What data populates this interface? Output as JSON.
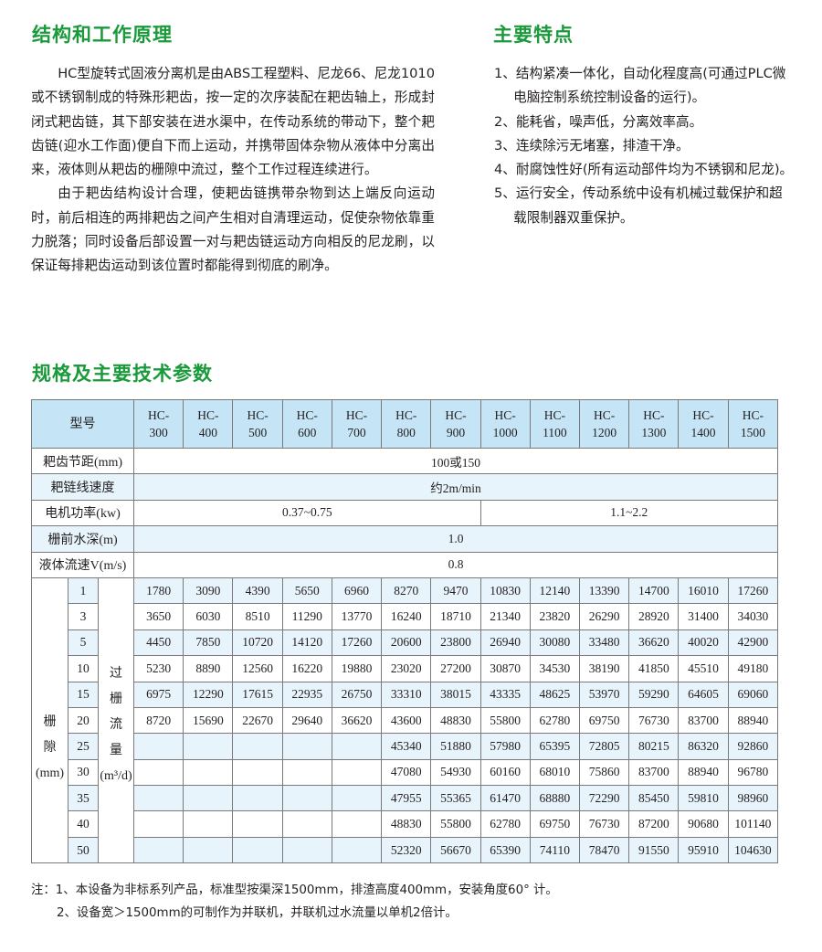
{
  "principle": {
    "title": "结构和工作原理",
    "paragraphs": [
      "HC型旋转式固液分离机是由ABS工程塑料、尼龙66、尼龙1010或不锈钢制成的特殊形耙齿，按一定的次序装配在耙齿轴上，形成封闭式耙齿链，其下部安装在进水渠中，在传动系统的带动下，整个耙齿链(迎水工作面)便自下而上运动，并携带固体杂物从液体中分离出来，液体则从耙齿的栅隙中流过，整个工作过程连续进行。",
      "由于耙齿结构设计合理，使耙齿链携带杂物到达上端反向运动时，前后相连的两排耙齿之间产生相对自清理运动，促使杂物依靠重力脱落；同时设备后部设置一对与耙齿链运动方向相反的尼龙刷，以保证每排耙齿运动到该位置时都能得到彻底的刷净。"
    ]
  },
  "features": {
    "title": "主要特点",
    "items": [
      "1、结构紧凑一体化，自动化程度高(可通过PLC微电脑控制系统控制设备的运行)。",
      "2、能耗省，噪声低，分离效率高。",
      "3、连续除污无堵塞，排渣干净。",
      "4、耐腐蚀性好(所有运动部件均为不锈钢和尼龙)。",
      "5、运行安全，传动系统中设有机械过载保护和超载限制器双重保护。"
    ]
  },
  "specs": {
    "title": "规格及主要技术参数",
    "model_label": "型号",
    "models": [
      [
        "HC-",
        "300"
      ],
      [
        "HC-",
        "400"
      ],
      [
        "HC-",
        "500"
      ],
      [
        "HC-",
        "600"
      ],
      [
        "HC-",
        "700"
      ],
      [
        "HC-",
        "800"
      ],
      [
        "HC-",
        "900"
      ],
      [
        "HC-",
        "1000"
      ],
      [
        "HC-",
        "1100"
      ],
      [
        "HC-",
        "1200"
      ],
      [
        "HC-",
        "1300"
      ],
      [
        "HC-",
        "1400"
      ],
      [
        "HC-",
        "1500"
      ]
    ],
    "params": [
      {
        "label": "耙齿节距(mm)",
        "cells": [
          {
            "span": 13,
            "value": "100或150"
          }
        ]
      },
      {
        "label": "耙链线速度",
        "cells": [
          {
            "span": 13,
            "value": "约2m/min"
          }
        ]
      },
      {
        "label": "电机功率(kw)",
        "cells": [
          {
            "span": 7,
            "value": "0.37~0.75"
          },
          {
            "span": 6,
            "value": "1.1~2.2"
          }
        ]
      },
      {
        "label": "栅前水深(m)",
        "cells": [
          {
            "span": 13,
            "value": "1.0"
          }
        ]
      },
      {
        "label": "液体流速V(m/s)",
        "cells": [
          {
            "span": 13,
            "value": "0.8"
          }
        ]
      }
    ],
    "gap_label": [
      "栅",
      "隙",
      "(mm)"
    ],
    "flow_label": [
      "过",
      "栅",
      "流",
      "量",
      "(m³/d)"
    ],
    "flow_rows": [
      {
        "gap": "1",
        "values": [
          "1780",
          "3090",
          "4390",
          "5650",
          "6960",
          "8270",
          "9470",
          "10830",
          "12140",
          "13390",
          "14700",
          "16010",
          "17260"
        ]
      },
      {
        "gap": "3",
        "values": [
          "3650",
          "6030",
          "8510",
          "11290",
          "13770",
          "16240",
          "18710",
          "21340",
          "23820",
          "26290",
          "28920",
          "31400",
          "34030"
        ]
      },
      {
        "gap": "5",
        "values": [
          "4450",
          "7850",
          "10720",
          "14120",
          "17260",
          "20600",
          "23800",
          "26940",
          "30080",
          "33480",
          "36620",
          "40020",
          "42900"
        ]
      },
      {
        "gap": "10",
        "values": [
          "5230",
          "8890",
          "12560",
          "16220",
          "19880",
          "23020",
          "27200",
          "30870",
          "34530",
          "38190",
          "41850",
          "45510",
          "49180"
        ]
      },
      {
        "gap": "15",
        "values": [
          "6975",
          "12290",
          "17615",
          "22935",
          "26750",
          "33310",
          "38015",
          "43335",
          "48625",
          "53970",
          "59290",
          "64605",
          "69060"
        ]
      },
      {
        "gap": "20",
        "values": [
          "8720",
          "15690",
          "22670",
          "29640",
          "36620",
          "43600",
          "48830",
          "55800",
          "62780",
          "69750",
          "76730",
          "83700",
          "88940"
        ]
      },
      {
        "gap": "25",
        "values": [
          "",
          "",
          "",
          "",
          "",
          "45340",
          "51880",
          "57980",
          "65395",
          "72805",
          "80215",
          "86320",
          "92860"
        ]
      },
      {
        "gap": "30",
        "values": [
          "",
          "",
          "",
          "",
          "",
          "47080",
          "54930",
          "60160",
          "68010",
          "75860",
          "83700",
          "88940",
          "96780"
        ]
      },
      {
        "gap": "35",
        "values": [
          "",
          "",
          "",
          "",
          "",
          "47955",
          "55365",
          "61470",
          "68880",
          "72290",
          "85450",
          "59810",
          "98960"
        ]
      },
      {
        "gap": "40",
        "values": [
          "",
          "",
          "",
          "",
          "",
          "48830",
          "55800",
          "62780",
          "69750",
          "76730",
          "87200",
          "90680",
          "101140"
        ]
      },
      {
        "gap": "50",
        "values": [
          "",
          "",
          "",
          "",
          "",
          "52320",
          "56670",
          "65390",
          "74110",
          "78470",
          "91550",
          "95910",
          "104630"
        ]
      }
    ]
  },
  "notes": [
    "注：1、本设备为非标系列产品，标准型按渠深1500mm，排渣高度400mm，安装角度60° 计。",
    "2、设备宽＞1500mm的可制作为并联机，并联机过水流量以单机2倍计。"
  ],
  "colors": {
    "heading": "#1a9a3a",
    "header_bg": "#c5e4f5",
    "stripe_bg": "#e8f4fc"
  }
}
